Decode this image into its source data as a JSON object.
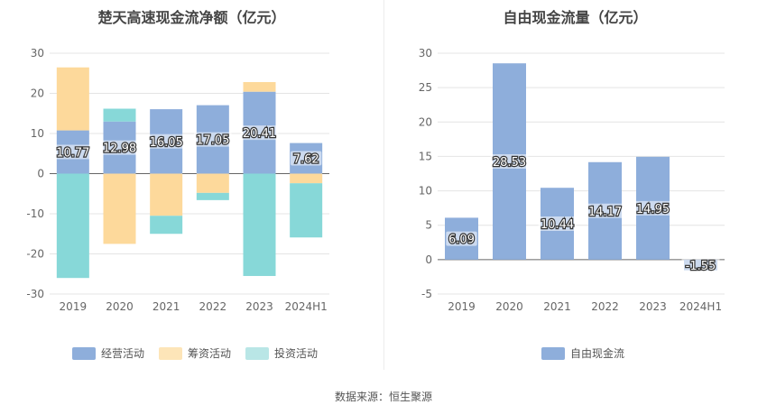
{
  "chart_data": [
    {
      "type": "bar",
      "stacked": true,
      "title": "楚天高速现金流净额（亿元）",
      "categories": [
        "2019",
        "2020",
        "2021",
        "2022",
        "2023",
        "2024H1"
      ],
      "ylim": [
        -30,
        30
      ],
      "yticks": [
        30,
        20,
        10,
        0,
        -10,
        -20,
        -30
      ],
      "grid": true,
      "legend_position": "bottom",
      "series": [
        {
          "name": "经营活动",
          "color": "#8eaedb",
          "values": [
            10.77,
            12.98,
            16.05,
            17.05,
            20.41,
            7.62
          ]
        },
        {
          "name": "筹资活动",
          "color": "#fdd99b",
          "values": [
            15.7,
            -17.5,
            -10.5,
            -4.8,
            2.4,
            -2.4
          ]
        },
        {
          "name": "投资活动",
          "color": "#87d8d8",
          "values": [
            -26,
            3.2,
            -4.5,
            -1.8,
            -25.5,
            -13.5
          ]
        }
      ],
      "data_labels": [
        "10.77",
        "12.98",
        "16.05",
        "17.05",
        "20.41",
        "7.62"
      ]
    },
    {
      "type": "bar",
      "title": "自由现金流量（亿元）",
      "categories": [
        "2019",
        "2020",
        "2021",
        "2022",
        "2023",
        "2024H1"
      ],
      "ylim": [
        -5,
        30
      ],
      "yticks": [
        30,
        25,
        20,
        15,
        10,
        5,
        0,
        -5
      ],
      "grid": true,
      "legend_position": "bottom",
      "series": [
        {
          "name": "自由现金流",
          "color": "#8eaedb",
          "values": [
            6.09,
            28.53,
            10.44,
            14.17,
            14.95,
            -1.55
          ]
        }
      ],
      "data_labels": [
        "6.09",
        "28.53",
        "10.44",
        "14.17",
        "14.95",
        "-1.55"
      ]
    }
  ],
  "source": "数据来源：恒生聚源"
}
